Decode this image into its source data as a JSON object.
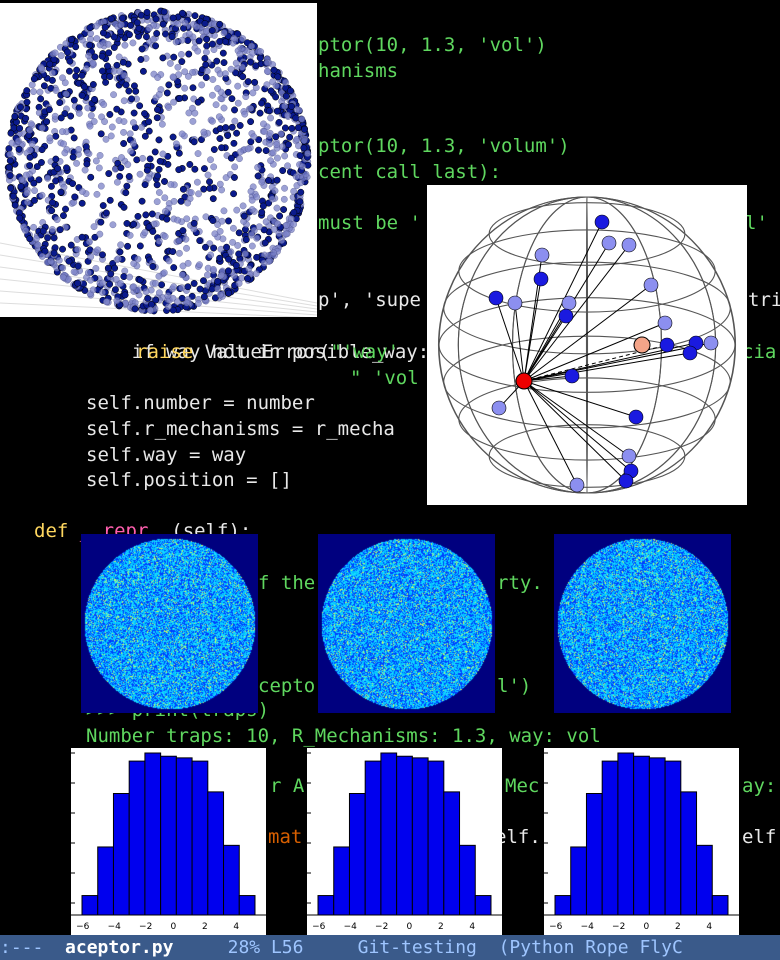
{
  "editor": {
    "lines": [
      {
        "id": "l1",
        "text": "ptor(10, 1.3, 'vol')",
        "cls": "g",
        "x": 318,
        "y": 32
      },
      {
        "id": "l2",
        "text": "hanisms",
        "cls": "g",
        "x": 318,
        "y": 58
      },
      {
        "id": "l3",
        "text": "ptor(10, 1.3, 'volum')",
        "cls": "g",
        "x": 318,
        "y": 133
      },
      {
        "id": "l4",
        "text": "cent call last):",
        "cls": "g",
        "x": 318,
        "y": 159
      },
      {
        "id": "l5",
        "text": "must be '",
        "cls": "g",
        "x": 318,
        "y": 210
      },
      {
        "id": "l5b",
        "text": "l'",
        "cls": "g",
        "x": 745,
        "y": 210
      },
      {
        "id": "l6",
        "text": "p', 'supe",
        "cls": "w",
        "x": 318,
        "y": 287
      },
      {
        "id": "l6b",
        "text": "tri",
        "cls": "w",
        "x": 748,
        "y": 287
      }
    ],
    "check_line": "if way not in posible_way:",
    "raise_kw": "raise ",
    "raise_fn": "ValueError(",
    "raise_str": "\"'way'",
    "raise_str2": "\" 'vol",
    "cia": "cia",
    "self_number": "self.number = number",
    "self_r": "self.r_mechanisms = r_mecha",
    "self_way": "self.way = way",
    "self_pos": "self.position = []",
    "def_line": "def",
    "def_name": "__repr__",
    "def_args": "(self):",
    "doc_frag1": "f the",
    "doc_frag2": "rty.",
    "acc_frag1": "cepto",
    "acc_frag2": "l')",
    "print_line": ">>> print(traps)",
    "output_line": "Number traps: 10, R_Mechanisms: 1.3, way: vol",
    "frag_r_a": "r A",
    "frag_mec": "Mec",
    "frag_ay": "ay:",
    "frag_mat": "mat",
    "frag_elf": "elf.",
    "frag_elf2": "elf"
  },
  "status_bar": {
    "mode": ":---",
    "filename": "aceptor.py",
    "position": "28% L56",
    "branch": "Git-testing",
    "modes": "(Python Rope FlyC"
  },
  "histogram": {
    "type": "bar",
    "bins": [
      -5.5,
      -4.5,
      -3.5,
      -2.5,
      -1.5,
      -0.5,
      0.5,
      1.5,
      2.5,
      3.5,
      4.5,
      5.5
    ],
    "heights": [
      0.12,
      0.42,
      0.75,
      0.95,
      1.0,
      0.98,
      0.97,
      0.95,
      0.76,
      0.43,
      0.12
    ],
    "xticks": [
      "−6",
      "−4",
      "−2",
      "0",
      "2",
      "4"
    ],
    "color": "#0000ee"
  },
  "colors": {
    "code_green": "#5fd75f",
    "keyword_yellow": "#ffd75f",
    "magenta": "#ff5faf",
    "status_bg": "#3a5a8a"
  }
}
